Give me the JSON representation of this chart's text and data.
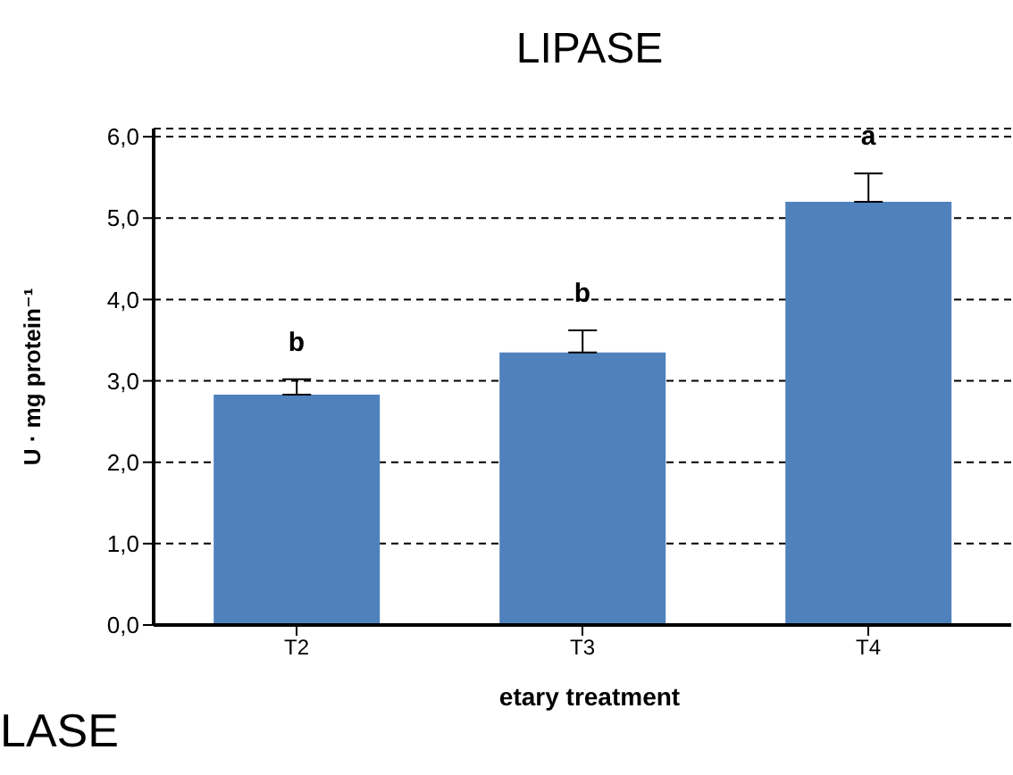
{
  "chart_data": {
    "type": "bar",
    "title": "LIPASE",
    "xlabel": "etary treatment",
    "ylabel": "U · mg protein⁻¹",
    "categories": [
      "T2",
      "T3",
      "T4"
    ],
    "values": [
      2.83,
      3.35,
      5.2
    ],
    "errors": [
      [
        2.83,
        3.02
      ],
      [
        3.35,
        3.62
      ],
      [
        5.2,
        5.55
      ]
    ],
    "color": "#4f81bd",
    "ylim": [
      0,
      6.1
    ],
    "yticks": [
      {
        "value": 0,
        "label": "0,0"
      },
      {
        "value": 1,
        "label": "1,0"
      },
      {
        "value": 2,
        "label": "2,0"
      },
      {
        "value": 3,
        "label": "3,0"
      },
      {
        "value": 4,
        "label": "4,0"
      },
      {
        "value": 5,
        "label": "5,0"
      },
      {
        "value": 6,
        "label": "6,0"
      }
    ],
    "grid": "y",
    "annotations": [
      "b",
      "b",
      "a",
      "LASE"
    ]
  }
}
